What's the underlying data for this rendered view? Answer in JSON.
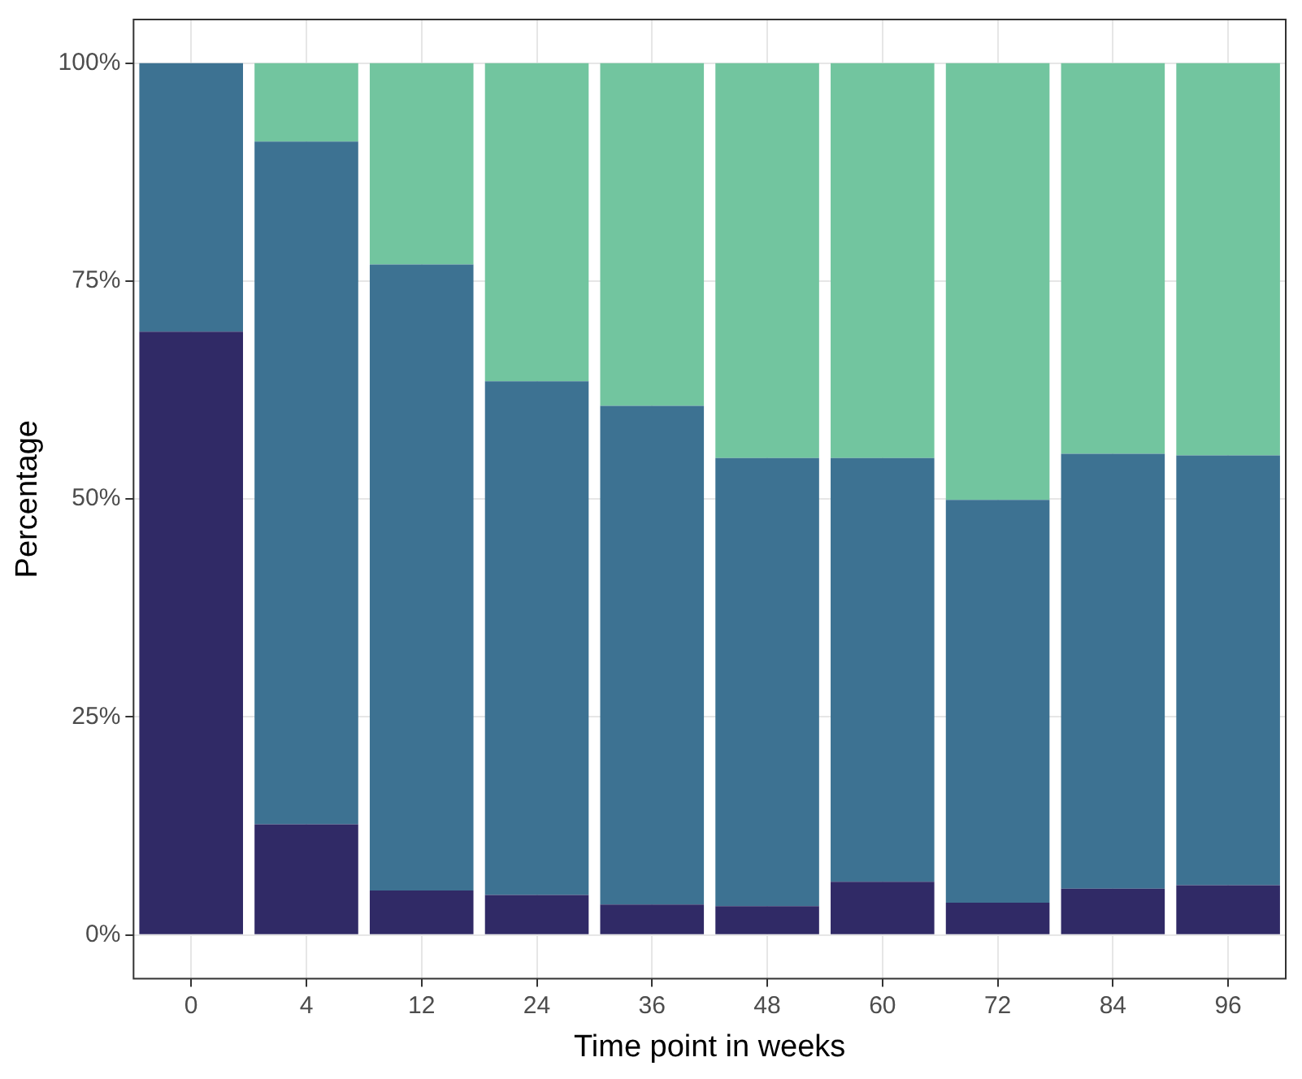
{
  "chart_data": {
    "type": "bar",
    "stacked": true,
    "xlabel": "Time point in weeks",
    "ylabel": "Percentage",
    "categories": [
      "0",
      "4",
      "12",
      "24",
      "36",
      "48",
      "60",
      "72",
      "84",
      "96"
    ],
    "series": [
      {
        "color": "#302a66",
        "values": [
          69.2,
          12.7,
          5.1,
          4.6,
          3.5,
          3.3,
          6.1,
          3.7,
          5.3,
          5.7
        ]
      },
      {
        "color": "#3d7292",
        "values": [
          30.8,
          78.3,
          71.8,
          58.9,
          57.2,
          51.4,
          48.6,
          46.2,
          49.9,
          49.3
        ]
      },
      {
        "color": "#72c59f",
        "values": [
          0,
          9.0,
          23.1,
          36.5,
          39.3,
          45.3,
          45.3,
          50.1,
          44.8,
          45.0
        ]
      }
    ],
    "ylim": [
      -5,
      105
    ],
    "yticks": [
      {
        "value": 0,
        "label": "0%"
      },
      {
        "value": 25,
        "label": "25%"
      },
      {
        "value": 50,
        "label": "50%"
      },
      {
        "value": 75,
        "label": "75%"
      },
      {
        "value": 100,
        "label": "100%"
      }
    ],
    "grid": true,
    "legend": false
  }
}
